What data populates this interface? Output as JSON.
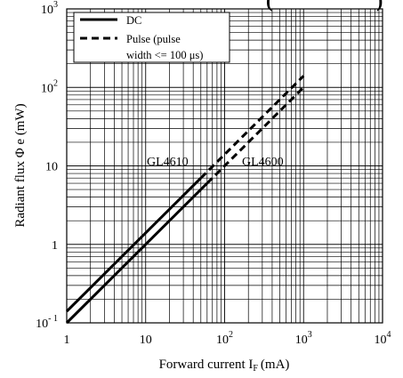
{
  "chart_data": {
    "type": "line",
    "title_fragment": "(",
    "title_fragment_end": ")",
    "xlabel": "Forward current I",
    "xlabel_sub": "F",
    "xlabel_unit": "(mA)",
    "ylabel": "Radiant flux Φ e (mW)",
    "x_scale": "log",
    "y_scale": "log",
    "xlim": [
      1,
      10000
    ],
    "ylim": [
      0.1,
      1000
    ],
    "grid": true,
    "x_ticks": [
      {
        "value": 1,
        "base": "1",
        "exp": ""
      },
      {
        "value": 10,
        "base": "10",
        "exp": ""
      },
      {
        "value": 100,
        "base": "10",
        "exp": "2"
      },
      {
        "value": 1000,
        "base": "10",
        "exp": "3"
      },
      {
        "value": 10000,
        "base": "10",
        "exp": "4"
      }
    ],
    "y_ticks": [
      {
        "value": 0.1,
        "base": "10",
        "exp": "- 1"
      },
      {
        "value": 1,
        "base": "1",
        "exp": ""
      },
      {
        "value": 10,
        "base": "10",
        "exp": ""
      },
      {
        "value": 100,
        "base": "10",
        "exp": "2"
      },
      {
        "value": 1000,
        "base": "10",
        "exp": "3"
      }
    ],
    "legend": {
      "placement": "top-left",
      "entries": [
        {
          "label": "DC",
          "style": "solid"
        },
        {
          "label": "Pulse (pulse",
          "label_line2": "width <= 100",
          "unit": "μs)",
          "style": "dashed"
        }
      ]
    },
    "series": [
      {
        "name": "GL4610",
        "dc": {
          "x": [
            1,
            50
          ],
          "y": [
            0.14,
            7.0
          ]
        },
        "pulse": {
          "x": [
            50,
            1000
          ],
          "y": [
            7.0,
            140
          ]
        }
      },
      {
        "name": "GL4600",
        "dc": {
          "x": [
            1,
            60
          ],
          "y": [
            0.1,
            6.0
          ]
        },
        "pulse": {
          "x": [
            60,
            1000
          ],
          "y": [
            6.0,
            100
          ]
        }
      }
    ]
  }
}
